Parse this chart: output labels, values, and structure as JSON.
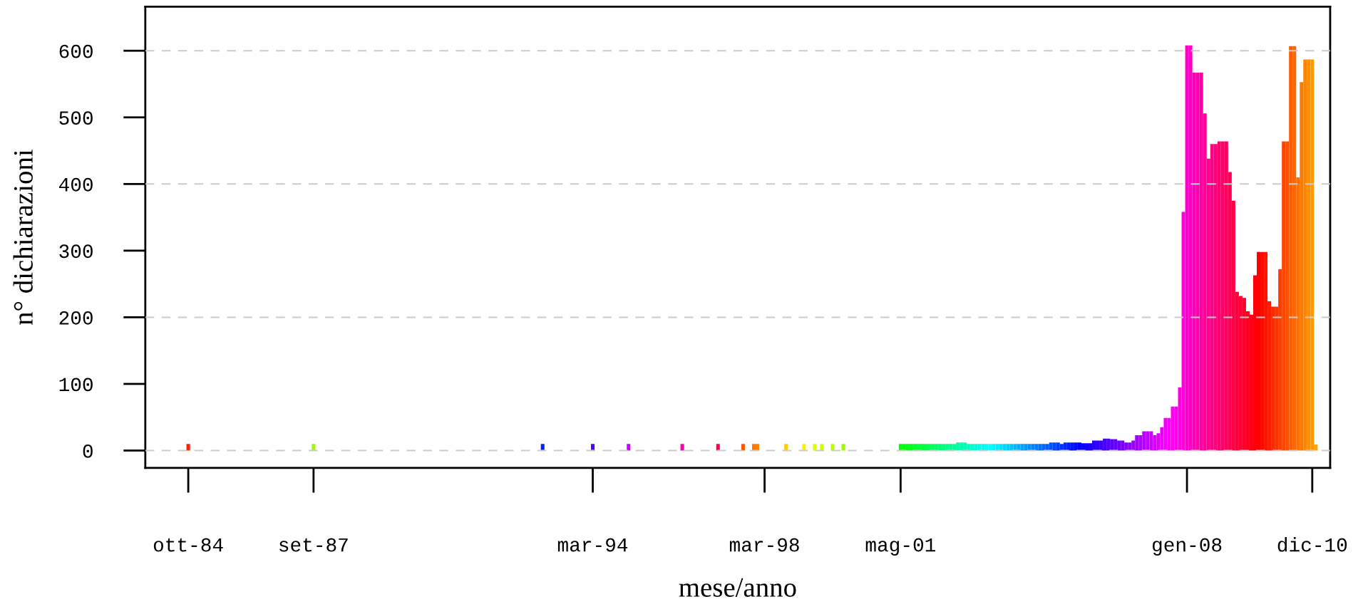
{
  "chart_data": {
    "type": "bar",
    "xlabel": "mese/anno",
    "ylabel": "n° dichiarazioni",
    "x": [
      "1984-10",
      "1987-09",
      "1993-01",
      "1994-03",
      "1995-01",
      "1996-04",
      "1997-02",
      "1997-09",
      "1997-12",
      "1998-01",
      "1998-09",
      "1999-02",
      "1999-05",
      "1999-07",
      "1999-10",
      "2000-01",
      "2001-05",
      "2001-06",
      "2001-07",
      "2001-08",
      "2001-09",
      "2001-10",
      "2001-11",
      "2001-12",
      "2002-01",
      "2002-02",
      "2002-03",
      "2002-04",
      "2002-05",
      "2002-06",
      "2002-07",
      "2002-08",
      "2002-09",
      "2002-10",
      "2002-11",
      "2002-12",
      "2003-01",
      "2003-02",
      "2003-03",
      "2003-04",
      "2003-05",
      "2003-06",
      "2003-07",
      "2003-08",
      "2003-09",
      "2003-10",
      "2003-11",
      "2003-12",
      "2004-01",
      "2004-02",
      "2004-03",
      "2004-04",
      "2004-05",
      "2004-06",
      "2004-07",
      "2004-08",
      "2004-09",
      "2004-10",
      "2004-11",
      "2004-12",
      "2005-01",
      "2005-02",
      "2005-03",
      "2005-04",
      "2005-05",
      "2005-06",
      "2005-07",
      "2005-08",
      "2005-09",
      "2005-10",
      "2005-11",
      "2005-12",
      "2006-01",
      "2006-02",
      "2006-03",
      "2006-04",
      "2006-05",
      "2006-06",
      "2006-07",
      "2006-08",
      "2006-09",
      "2006-10",
      "2006-11",
      "2006-12",
      "2007-01",
      "2007-02",
      "2007-03",
      "2007-04",
      "2007-05",
      "2007-06",
      "2007-07",
      "2007-08",
      "2007-09",
      "2007-10",
      "2007-11",
      "2007-12",
      "2008-01",
      "2008-02",
      "2008-03",
      "2008-04",
      "2008-05",
      "2008-06",
      "2008-07",
      "2008-08",
      "2008-09",
      "2008-10",
      "2008-11",
      "2008-12",
      "2009-01",
      "2009-02",
      "2009-03",
      "2009-04",
      "2009-05",
      "2009-06",
      "2009-07",
      "2009-08",
      "2009-09",
      "2009-10",
      "2009-11",
      "2009-12",
      "2010-01",
      "2010-02",
      "2010-03",
      "2010-04",
      "2010-05",
      "2010-06",
      "2010-07",
      "2010-08",
      "2010-09",
      "2010-10",
      "2010-11",
      "2010-12",
      "2011-01"
    ],
    "values": [
      10,
      10,
      10,
      10,
      10,
      10,
      10,
      10,
      10,
      10,
      10,
      10,
      10,
      10,
      10,
      10,
      10,
      10,
      10,
      10,
      10,
      10,
      10,
      10,
      10,
      10,
      10,
      10,
      10,
      10,
      10,
      10,
      12,
      12,
      12,
      10,
      10,
      10,
      10,
      10,
      10,
      10,
      10,
      10,
      10,
      10,
      10,
      10,
      10,
      10,
      10,
      10,
      10,
      10,
      10,
      10,
      10,
      10,
      12,
      12,
      12,
      10,
      12,
      12,
      12,
      12,
      12,
      11,
      11,
      11,
      15,
      15,
      15,
      18,
      18,
      17,
      17,
      15,
      15,
      12,
      12,
      15,
      23,
      23,
      29,
      29,
      29,
      23,
      26,
      35,
      49,
      49,
      66,
      66,
      95,
      358,
      608,
      608,
      567,
      567,
      567,
      506,
      438,
      460,
      460,
      464,
      464,
      464,
      418,
      375,
      238,
      232,
      229,
      209,
      204,
      263,
      298,
      298,
      298,
      224,
      216,
      216,
      272,
      464,
      464,
      607,
      607,
      410,
      553,
      587,
      587,
      587,
      9
    ],
    "colors": [
      "#ff2200",
      "#99ff00",
      "#0022ff",
      "#5500ff",
      "#cc00ff",
      "#ff00aa",
      "#ff0044",
      "#ff5500",
      "#ff7700",
      "#ff7f00",
      "#ffcc00",
      "#fff000",
      "#ddff00",
      "#ccff00",
      "#b5ff00",
      "#99ff00",
      "#00ff00",
      "#00ff0a",
      "#00ff14",
      "#00ff1f",
      "#00ff29",
      "#00ff33",
      "#00ff3d",
      "#00ff47",
      "#00ff52",
      "#00ff5c",
      "#00ff66",
      "#00ff70",
      "#00ff7a",
      "#00ff85",
      "#00ff8f",
      "#00ff99",
      "#00ffa3",
      "#00ffad",
      "#00ffb8",
      "#00ffc2",
      "#00ffcc",
      "#00ffd6",
      "#00ffe0",
      "#00ffeb",
      "#00fff5",
      "#00ffff",
      "#00f5ff",
      "#00ebff",
      "#00e0ff",
      "#00d6ff",
      "#00ccff",
      "#00c2ff",
      "#00b8ff",
      "#00adff",
      "#00a3ff",
      "#0099ff",
      "#008fff",
      "#0085ff",
      "#007aff",
      "#0070ff",
      "#0066ff",
      "#005cff",
      "#0052ff",
      "#0047ff",
      "#003dff",
      "#0033ff",
      "#0029ff",
      "#001fff",
      "#0014ff",
      "#000aff",
      "#0000ff",
      "#0a00ff",
      "#1400ff",
      "#1f00ff",
      "#2900ff",
      "#3300ff",
      "#3d00ff",
      "#4700ff",
      "#5200ff",
      "#5c00ff",
      "#6600ff",
      "#7000ff",
      "#7a00ff",
      "#8500ff",
      "#8f00ff",
      "#9900ff",
      "#a300ff",
      "#ad00ff",
      "#b800ff",
      "#c200ff",
      "#cc00ff",
      "#d600ff",
      "#e000ff",
      "#eb00ff",
      "#f500ff",
      "#ff00ff",
      "#ff00f5",
      "#ff00eb",
      "#ff00e0",
      "#ff00d6",
      "#ff00cc",
      "#ff00c2",
      "#ff00b8",
      "#ff00ad",
      "#ff00a3",
      "#ff0099",
      "#ff008f",
      "#ff0085",
      "#ff007a",
      "#ff0070",
      "#ff0066",
      "#ff005c",
      "#ff0052",
      "#ff0047",
      "#ff003d",
      "#ff0033",
      "#ff0029",
      "#ff001f",
      "#ff0014",
      "#ff000a",
      "#ff0000",
      "#ff0a00",
      "#ff1400",
      "#ff1f00",
      "#ff2900",
      "#ff3300",
      "#ff3d00",
      "#ff4700",
      "#ff5200",
      "#ff5c00",
      "#ff6600",
      "#ff7000",
      "#ff7a00",
      "#ff8500",
      "#ff8f00",
      "#ff9900",
      "#ffa300"
    ],
    "xlim": [
      "1983-10",
      "2011-05"
    ],
    "xticks": [
      {
        "value": "1984-10",
        "label": "ott-84"
      },
      {
        "value": "1987-09",
        "label": "set-87"
      },
      {
        "value": "1994-03",
        "label": "mar-94"
      },
      {
        "value": "1998-03",
        "label": "mar-98"
      },
      {
        "value": "2001-05",
        "label": "mag-01"
      },
      {
        "value": "2008-01",
        "label": "gen-08"
      },
      {
        "value": "2010-12",
        "label": "dic-10"
      }
    ],
    "ylim": [
      -26,
      666
    ],
    "yticks": [
      0,
      100,
      200,
      300,
      400,
      500,
      600
    ],
    "ref_lines": [
      {
        "axis": "y",
        "value": 0,
        "color": "#cccccc",
        "line_style": "dashed"
      },
      {
        "axis": "y",
        "value": 200,
        "color": "#cccccc",
        "line_style": "dashed"
      },
      {
        "axis": "y",
        "value": 400,
        "color": "#cccccc",
        "line_style": "dashed"
      },
      {
        "axis": "y",
        "value": 600,
        "color": "#cccccc",
        "line_style": "dashed"
      }
    ]
  }
}
